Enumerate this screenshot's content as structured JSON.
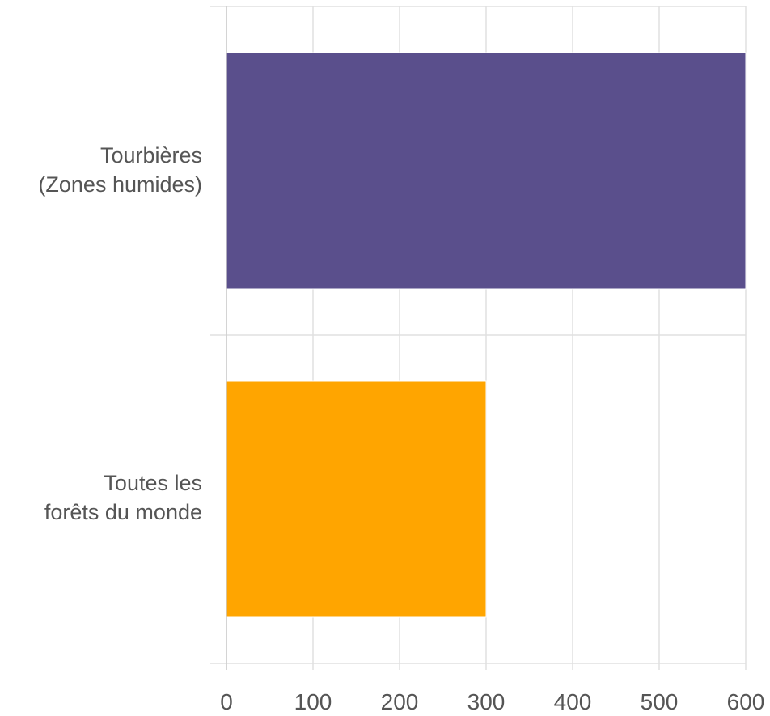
{
  "chart_data": {
    "type": "bar",
    "orientation": "horizontal",
    "categories": [
      "Tourbières\n(Zones humides)",
      "Toutes les\nforêts du monde"
    ],
    "values": [
      600,
      300
    ],
    "colors": [
      "#5a4f8c",
      "#ffa500"
    ],
    "xlim": [
      0,
      600
    ],
    "xticks": [
      0,
      100,
      200,
      300,
      400,
      500,
      600
    ],
    "title": "",
    "xlabel": "",
    "ylabel": "",
    "grid": true,
    "gridline_color": "#e0e0e0"
  }
}
